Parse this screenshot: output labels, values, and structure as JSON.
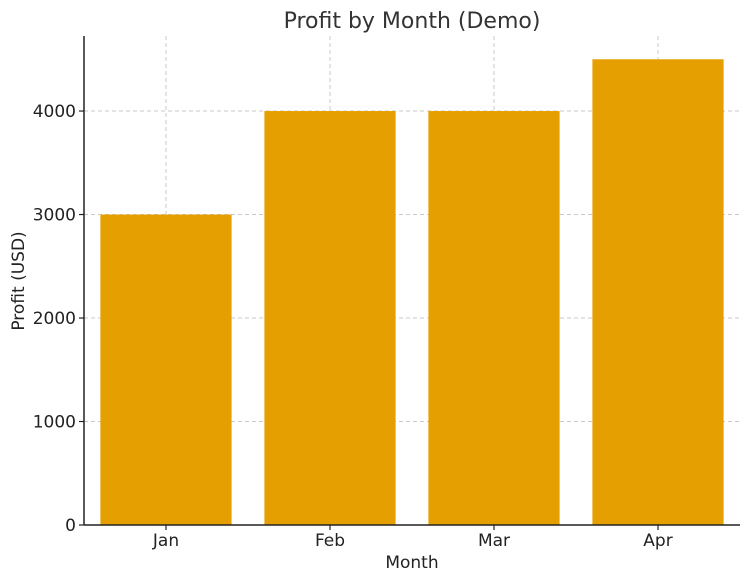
{
  "chart_data": {
    "type": "bar",
    "title": "Profit by Month (Demo)",
    "xlabel": "Month",
    "ylabel": "Profit (USD)",
    "categories": [
      "Jan",
      "Feb",
      "Mar",
      "Apr"
    ],
    "values": [
      3000,
      4000,
      4000,
      4500
    ],
    "ylim": [
      0,
      4725
    ],
    "yticks": [
      0,
      1000,
      2000,
      3000,
      4000
    ],
    "grid": true,
    "bar_color": "#E69F00"
  }
}
